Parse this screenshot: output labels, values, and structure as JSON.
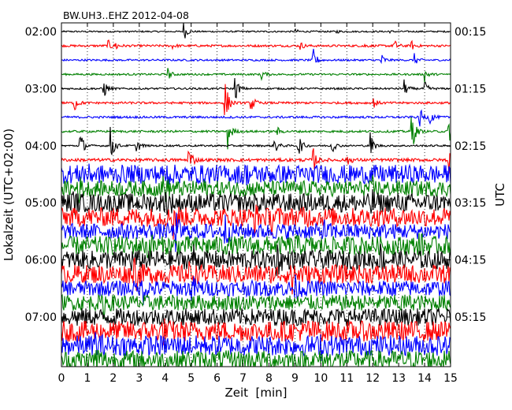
{
  "chart_data": {
    "type": "line",
    "title": "BW.UH3..EHZ 2012-04-08",
    "xlabel": "Zeit  [min]",
    "ylabel_left": "Lokalzeit (UTC+02:00)",
    "ylabel_right": "UTC",
    "xlim": [
      0,
      15
    ],
    "x_ticks": [
      "0",
      "1",
      "2",
      "3",
      "4",
      "5",
      "6",
      "7",
      "8",
      "9",
      "10",
      "11",
      "12",
      "13",
      "14",
      "15"
    ],
    "grid": "vertical dotted",
    "trace_interval_min": 15,
    "trace_count": 24,
    "trace_colors": [
      "#000000",
      "#ff0000",
      "#0000ff",
      "#008000"
    ],
    "left_ticks": [
      {
        "trace": 0,
        "label": "02:00"
      },
      {
        "trace": 4,
        "label": "03:00"
      },
      {
        "trace": 8,
        "label": "04:00"
      },
      {
        "trace": 12,
        "label": "05:00"
      },
      {
        "trace": 16,
        "label": "06:00"
      },
      {
        "trace": 20,
        "label": "07:00"
      }
    ],
    "right_ticks": [
      {
        "trace": 0,
        "label": "00:15"
      },
      {
        "trace": 4,
        "label": "01:15"
      },
      {
        "trace": 8,
        "label": "02:15"
      },
      {
        "trace": 12,
        "label": "03:15"
      },
      {
        "trace": 16,
        "label": "04:15"
      },
      {
        "trace": 20,
        "label": "05:15"
      }
    ],
    "series": [
      {
        "trace": 0,
        "noise": 0.05,
        "events": [
          {
            "t": 4.7,
            "a": 0.7
          },
          {
            "t": 9.0,
            "a": 0.15
          },
          {
            "t": 10.6,
            "a": 0.1
          },
          {
            "t": 12.5,
            "a": 0.2
          }
        ]
      },
      {
        "trace": 1,
        "noise": 0.07,
        "events": [
          {
            "t": 1.8,
            "a": 0.35
          },
          {
            "t": 2.1,
            "a": 0.3
          },
          {
            "t": 4.3,
            "a": 0.15
          },
          {
            "t": 9.2,
            "a": 0.25
          },
          {
            "t": 11.6,
            "a": 0.2
          },
          {
            "t": 12.8,
            "a": 0.5
          },
          {
            "t": 13.5,
            "a": 0.3
          }
        ]
      },
      {
        "trace": 2,
        "noise": 0.06,
        "events": [
          {
            "t": 9.7,
            "a": 0.8
          },
          {
            "t": 12.3,
            "a": 0.55
          },
          {
            "t": 13.6,
            "a": 0.4
          }
        ]
      },
      {
        "trace": 3,
        "noise": 0.06,
        "events": [
          {
            "t": 4.1,
            "a": 0.4
          },
          {
            "t": 7.7,
            "a": 0.4
          },
          {
            "t": 14.0,
            "a": 0.5
          }
        ]
      },
      {
        "trace": 4,
        "noise": 0.06,
        "events": [
          {
            "t": 1.6,
            "a": 0.9
          },
          {
            "t": 6.7,
            "a": 0.8
          },
          {
            "t": 13.2,
            "a": 0.6
          },
          {
            "t": 14.0,
            "a": 0.5
          }
        ]
      },
      {
        "trace": 5,
        "noise": 0.07,
        "events": [
          {
            "t": 0.5,
            "a": 0.6
          },
          {
            "t": 6.3,
            "a": 1.7
          },
          {
            "t": 7.3,
            "a": 0.7
          },
          {
            "t": 12.0,
            "a": 0.4
          }
        ]
      },
      {
        "trace": 6,
        "noise": 0.07,
        "events": [
          {
            "t": 13.8,
            "a": 0.7
          },
          {
            "t": 14.2,
            "a": 0.5
          }
        ]
      },
      {
        "trace": 7,
        "noise": 0.07,
        "events": [
          {
            "t": 6.4,
            "a": 1.3
          },
          {
            "t": 8.3,
            "a": 0.3
          },
          {
            "t": 13.5,
            "a": 1.5
          },
          {
            "t": 14.9,
            "a": 1.0
          }
        ]
      },
      {
        "trace": 8,
        "noise": 0.06,
        "events": [
          {
            "t": 0.7,
            "a": 1.2
          },
          {
            "t": 1.9,
            "a": 1.2
          },
          {
            "t": 2.9,
            "a": 0.5
          },
          {
            "t": 8.2,
            "a": 0.7
          },
          {
            "t": 9.1,
            "a": 1.2
          },
          {
            "t": 10.4,
            "a": 0.6
          },
          {
            "t": 11.9,
            "a": 0.9
          }
        ]
      },
      {
        "trace": 9,
        "noise": 0.1,
        "events": [
          {
            "t": 4.9,
            "a": 1.2
          },
          {
            "t": 9.7,
            "a": 0.8
          },
          {
            "t": 11.0,
            "a": 0.4
          },
          {
            "t": 14.9,
            "a": 1.4
          }
        ]
      },
      {
        "trace": 10,
        "noise": 0.6,
        "events": [
          {
            "t": 0.8,
            "a": 0.8
          },
          {
            "t": 4.0,
            "a": 0.6
          },
          {
            "t": 7.0,
            "a": 0.5
          }
        ]
      },
      {
        "trace": 11,
        "noise": 0.5,
        "events": [
          {
            "t": 0.6,
            "a": 1.0
          },
          {
            "t": 3.9,
            "a": 1.1
          },
          {
            "t": 5.3,
            "a": 0.6
          },
          {
            "t": 12.0,
            "a": 0.4
          }
        ]
      },
      {
        "trace": 12,
        "noise": 0.6,
        "events": [
          {
            "t": 0.4,
            "a": 0.5
          },
          {
            "t": 4.0,
            "a": 0.8
          },
          {
            "t": 11.9,
            "a": 0.9
          }
        ]
      },
      {
        "trace": 13,
        "noise": 0.6,
        "events": [
          {
            "t": 4.3,
            "a": 1.3
          },
          {
            "t": 7.4,
            "a": 0.8
          },
          {
            "t": 8.1,
            "a": 0.9
          },
          {
            "t": 9.3,
            "a": 0.6
          }
        ]
      },
      {
        "trace": 14,
        "noise": 0.5,
        "events": [
          {
            "t": 4.4,
            "a": 1.0
          },
          {
            "t": 6.3,
            "a": 0.9
          },
          {
            "t": 10.1,
            "a": 0.5
          }
        ]
      },
      {
        "trace": 15,
        "noise": 0.6,
        "events": [
          {
            "t": 3.3,
            "a": 1.0
          },
          {
            "t": 8.9,
            "a": 0.6
          },
          {
            "t": 13.8,
            "a": 0.5
          }
        ]
      },
      {
        "trace": 16,
        "noise": 0.6,
        "events": [
          {
            "t": 2.6,
            "a": 0.7
          },
          {
            "t": 5.1,
            "a": 0.6
          },
          {
            "t": 8.3,
            "a": 0.8
          },
          {
            "t": 12.3,
            "a": 0.6
          }
        ]
      },
      {
        "trace": 17,
        "noise": 0.6,
        "events": [
          {
            "t": 2.8,
            "a": 1.2
          },
          {
            "t": 4.8,
            "a": 0.9
          },
          {
            "t": 8.9,
            "a": 1.4
          }
        ]
      },
      {
        "trace": 18,
        "noise": 0.5,
        "events": [
          {
            "t": 3.1,
            "a": 1.0
          },
          {
            "t": 5.0,
            "a": 0.8
          },
          {
            "t": 9.0,
            "a": 0.5
          }
        ]
      },
      {
        "trace": 19,
        "noise": 0.5,
        "events": [
          {
            "t": 1.6,
            "a": 0.8
          },
          {
            "t": 13.0,
            "a": 0.5
          }
        ]
      },
      {
        "trace": 20,
        "noise": 0.55,
        "events": [
          {
            "t": 0.5,
            "a": 0.4
          }
        ]
      },
      {
        "trace": 21,
        "noise": 0.65,
        "events": [
          {
            "t": 3.9,
            "a": 0.5
          },
          {
            "t": 9.5,
            "a": 0.4
          }
        ]
      },
      {
        "trace": 22,
        "noise": 0.65,
        "events": [
          {
            "t": 1.3,
            "a": 0.7
          },
          {
            "t": 10.0,
            "a": 0.5
          }
        ]
      },
      {
        "trace": 23,
        "noise": 0.6,
        "events": [
          {
            "t": 1.3,
            "a": 0.9
          }
        ]
      }
    ]
  }
}
